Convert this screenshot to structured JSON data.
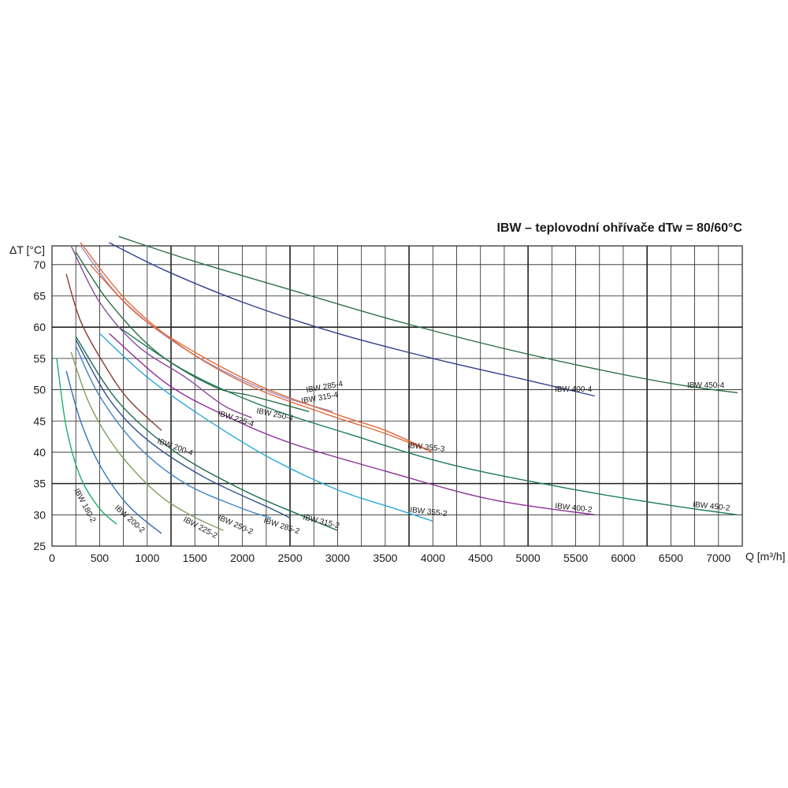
{
  "chart_data": {
    "type": "line",
    "title": "IBW – teplovodní ohřívače dTw = 80/60°C",
    "ylabel": "ΔT [°C]",
    "xlabel": "Q [m³/h]",
    "xlim": [
      0,
      7250
    ],
    "ylim": [
      25,
      73
    ],
    "x_ticks": [
      "0",
      "500",
      "1000",
      "1500",
      "2000",
      "2500",
      "3000",
      "3500",
      "4000",
      "4500",
      "5000",
      "5500",
      "6000",
      "6500",
      "7000"
    ],
    "y_ticks": [
      "25",
      "30",
      "35",
      "40",
      "45",
      "50",
      "55",
      "60",
      "65",
      "70"
    ],
    "grid": true,
    "series": [
      {
        "name": "IBW 180-2",
        "color": "#1fae6a",
        "points": [
          [
            50,
            55
          ],
          [
            150,
            44
          ],
          [
            300,
            36
          ],
          [
            500,
            31
          ],
          [
            680,
            28.5
          ]
        ]
      },
      {
        "name": "IBW 200-2",
        "color": "#2f6fb0",
        "points": [
          [
            150,
            53
          ],
          [
            300,
            45
          ],
          [
            500,
            38
          ],
          [
            800,
            31.5
          ],
          [
            1150,
            27
          ]
        ]
      },
      {
        "name": "IBW 225-2",
        "color": "#7fa05a",
        "points": [
          [
            200,
            56
          ],
          [
            400,
            47.5
          ],
          [
            700,
            40
          ],
          [
            1100,
            33.5
          ],
          [
            1450,
            30
          ],
          [
            1800,
            27.5
          ]
        ]
      },
      {
        "name": "IBW 250-2",
        "color": "#3f84c6",
        "points": [
          [
            250,
            57
          ],
          [
            500,
            49
          ],
          [
            900,
            41
          ],
          [
            1400,
            35
          ],
          [
            2000,
            31
          ],
          [
            2300,
            29.5
          ]
        ]
      },
      {
        "name": "IBW 285-2",
        "color": "#2e4f8f",
        "points": [
          [
            250,
            58
          ],
          [
            600,
            48.5
          ],
          [
            1000,
            42
          ],
          [
            1600,
            36
          ],
          [
            2300,
            31
          ],
          [
            2500,
            29.5
          ]
        ]
      },
      {
        "name": "IBW 315-2",
        "color": "#1a6b4f",
        "points": [
          [
            250,
            58.5
          ],
          [
            700,
            48
          ],
          [
            1300,
            40
          ],
          [
            2000,
            34
          ],
          [
            2600,
            30
          ],
          [
            3000,
            27.5
          ]
        ]
      },
      {
        "name": "IBW 355-2",
        "color": "#29a8d6",
        "points": [
          [
            500,
            59
          ],
          [
            1000,
            52
          ],
          [
            1600,
            45.5
          ],
          [
            2300,
            39
          ],
          [
            3000,
            34
          ],
          [
            3600,
            31
          ],
          [
            4000,
            29
          ]
        ]
      },
      {
        "name": "IBW 400-2",
        "color": "#8a2c94",
        "points": [
          [
            600,
            59
          ],
          [
            1200,
            51
          ],
          [
            1800,
            46
          ],
          [
            2500,
            41.5
          ],
          [
            3500,
            37
          ],
          [
            4600,
            32.5
          ],
          [
            5700,
            30
          ]
        ]
      },
      {
        "name": "IBW 450-2",
        "color": "#1b7a5a",
        "points": [
          [
            700,
            60
          ],
          [
            1400,
            53
          ],
          [
            2200,
            47.5
          ],
          [
            3100,
            43
          ],
          [
            4200,
            38
          ],
          [
            5500,
            34
          ],
          [
            6500,
            31.5
          ],
          [
            7200,
            30
          ]
        ]
      },
      {
        "name": "IBW 200-4",
        "color": "#8b3a30",
        "points": [
          [
            150,
            68.5
          ],
          [
            300,
            61
          ],
          [
            550,
            54
          ],
          [
            800,
            48.5
          ],
          [
            1150,
            43.5
          ]
        ]
      },
      {
        "name": "IBW 225-4",
        "color": "#8a4a9a",
        "points": [
          [
            200,
            73
          ],
          [
            500,
            64
          ],
          [
            900,
            57
          ],
          [
            1400,
            52
          ],
          [
            1800,
            47.5
          ],
          [
            2100,
            45.5
          ]
        ]
      },
      {
        "name": "IBW 250-4",
        "color": "#2b6f45",
        "points": [
          [
            250,
            72
          ],
          [
            600,
            64
          ],
          [
            1100,
            56
          ],
          [
            1700,
            50.5
          ],
          [
            2100,
            49
          ],
          [
            2700,
            46.5
          ]
        ]
      },
      {
        "name": "IBW 285-4",
        "color": "#9c8ac0",
        "points": [
          [
            300,
            73
          ],
          [
            700,
            65
          ],
          [
            1200,
            58.5
          ],
          [
            1800,
            53
          ],
          [
            2400,
            49
          ],
          [
            2950,
            46.5
          ]
        ]
      },
      {
        "name": "IBW 315-4",
        "color": "#e06a3a",
        "points": [
          [
            300,
            73.5
          ],
          [
            800,
            64
          ],
          [
            1400,
            56.5
          ],
          [
            2100,
            50.5
          ],
          [
            2900,
            46
          ],
          [
            3500,
            43
          ],
          [
            4000,
            40
          ]
        ]
      },
      {
        "name": "IBW 355-3",
        "color": "#e06a3a",
        "points": [
          [
            400,
            70
          ],
          [
            900,
            62
          ],
          [
            1500,
            56
          ],
          [
            2200,
            50.5
          ],
          [
            3000,
            46
          ],
          [
            3500,
            43.5
          ],
          [
            4000,
            40
          ]
        ]
      },
      {
        "name": "IBW 400-4",
        "color": "#323f8e",
        "points": [
          [
            600,
            73.5
          ],
          [
            1200,
            69
          ],
          [
            2000,
            64
          ],
          [
            3000,
            59
          ],
          [
            4000,
            55
          ],
          [
            5000,
            51.5
          ],
          [
            5700,
            49
          ]
        ]
      },
      {
        "name": "IBW 450-4",
        "color": "#2a6f45",
        "points": [
          [
            700,
            74.5
          ],
          [
            1500,
            70.5
          ],
          [
            2500,
            66
          ],
          [
            3500,
            61.5
          ],
          [
            4500,
            57.5
          ],
          [
            5500,
            54
          ],
          [
            6500,
            51
          ],
          [
            7200,
            49.5
          ]
        ]
      }
    ]
  }
}
